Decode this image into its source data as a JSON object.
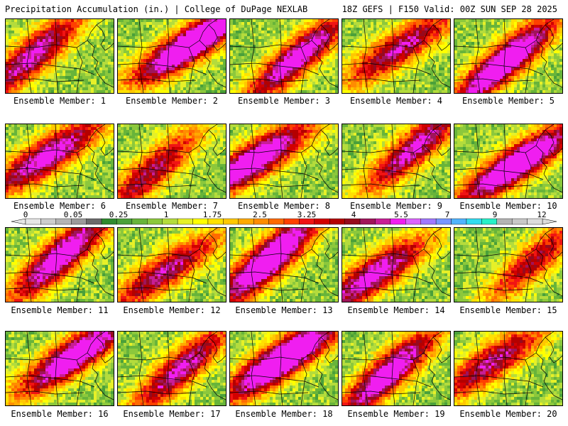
{
  "header": {
    "title": "Precipitation Accumulation (in.) | College of DuPage NEXLAB",
    "run_info": "18Z GEFS | F150 Valid: 00Z SUN SEP 28 2025"
  },
  "member_label_prefix": "Ensemble Member: ",
  "members": [
    {
      "id": 1,
      "label": "Ensemble Member: 1"
    },
    {
      "id": 2,
      "label": "Ensemble Member: 2"
    },
    {
      "id": 3,
      "label": "Ensemble Member: 3"
    },
    {
      "id": 4,
      "label": "Ensemble Member: 4"
    },
    {
      "id": 5,
      "label": "Ensemble Member: 5"
    },
    {
      "id": 6,
      "label": "Ensemble Member: 6"
    },
    {
      "id": 7,
      "label": "Ensemble Member: 7"
    },
    {
      "id": 8,
      "label": "Ensemble Member: 8"
    },
    {
      "id": 9,
      "label": "Ensemble Member: 9"
    },
    {
      "id": 10,
      "label": "Ensemble Member: 10"
    },
    {
      "id": 11,
      "label": "Ensemble Member: 11"
    },
    {
      "id": 12,
      "label": "Ensemble Member: 12"
    },
    {
      "id": 13,
      "label": "Ensemble Member: 13"
    },
    {
      "id": 14,
      "label": "Ensemble Member: 14"
    },
    {
      "id": 15,
      "label": "Ensemble Member: 15"
    },
    {
      "id": 16,
      "label": "Ensemble Member: 16"
    },
    {
      "id": 17,
      "label": "Ensemble Member: 17"
    },
    {
      "id": 18,
      "label": "Ensemble Member: 18"
    },
    {
      "id": 19,
      "label": "Ensemble Member: 19"
    },
    {
      "id": 20,
      "label": "Ensemble Member: 20"
    }
  ],
  "colorbar": {
    "tick_labels": [
      "0",
      "0.05",
      "0.25",
      "1",
      "1.75",
      "2.5",
      "3.25",
      "4",
      "5.5",
      "7",
      "9",
      "12"
    ],
    "colors": [
      "#e6e6e6",
      "#cdcdcd",
      "#b4b4b4",
      "#9b9b9b",
      "#6b6b6b",
      "#2f8a2f",
      "#4aa03a",
      "#68b43a",
      "#8cc83c",
      "#b4dc3c",
      "#e6f028",
      "#ffff00",
      "#ffe100",
      "#ffc800",
      "#ffaa00",
      "#ff8c00",
      "#ff6a00",
      "#ff4000",
      "#f01414",
      "#d20000",
      "#b40000",
      "#960a1e",
      "#a0145a",
      "#c81e96",
      "#f01ef0",
      "#dc64ff",
      "#a078ff",
      "#7896ff",
      "#50b4ff",
      "#32dcf0",
      "#28f0c8",
      "#b4b4b4",
      "#c8c8c8",
      "#dcdcdc"
    ]
  }
}
